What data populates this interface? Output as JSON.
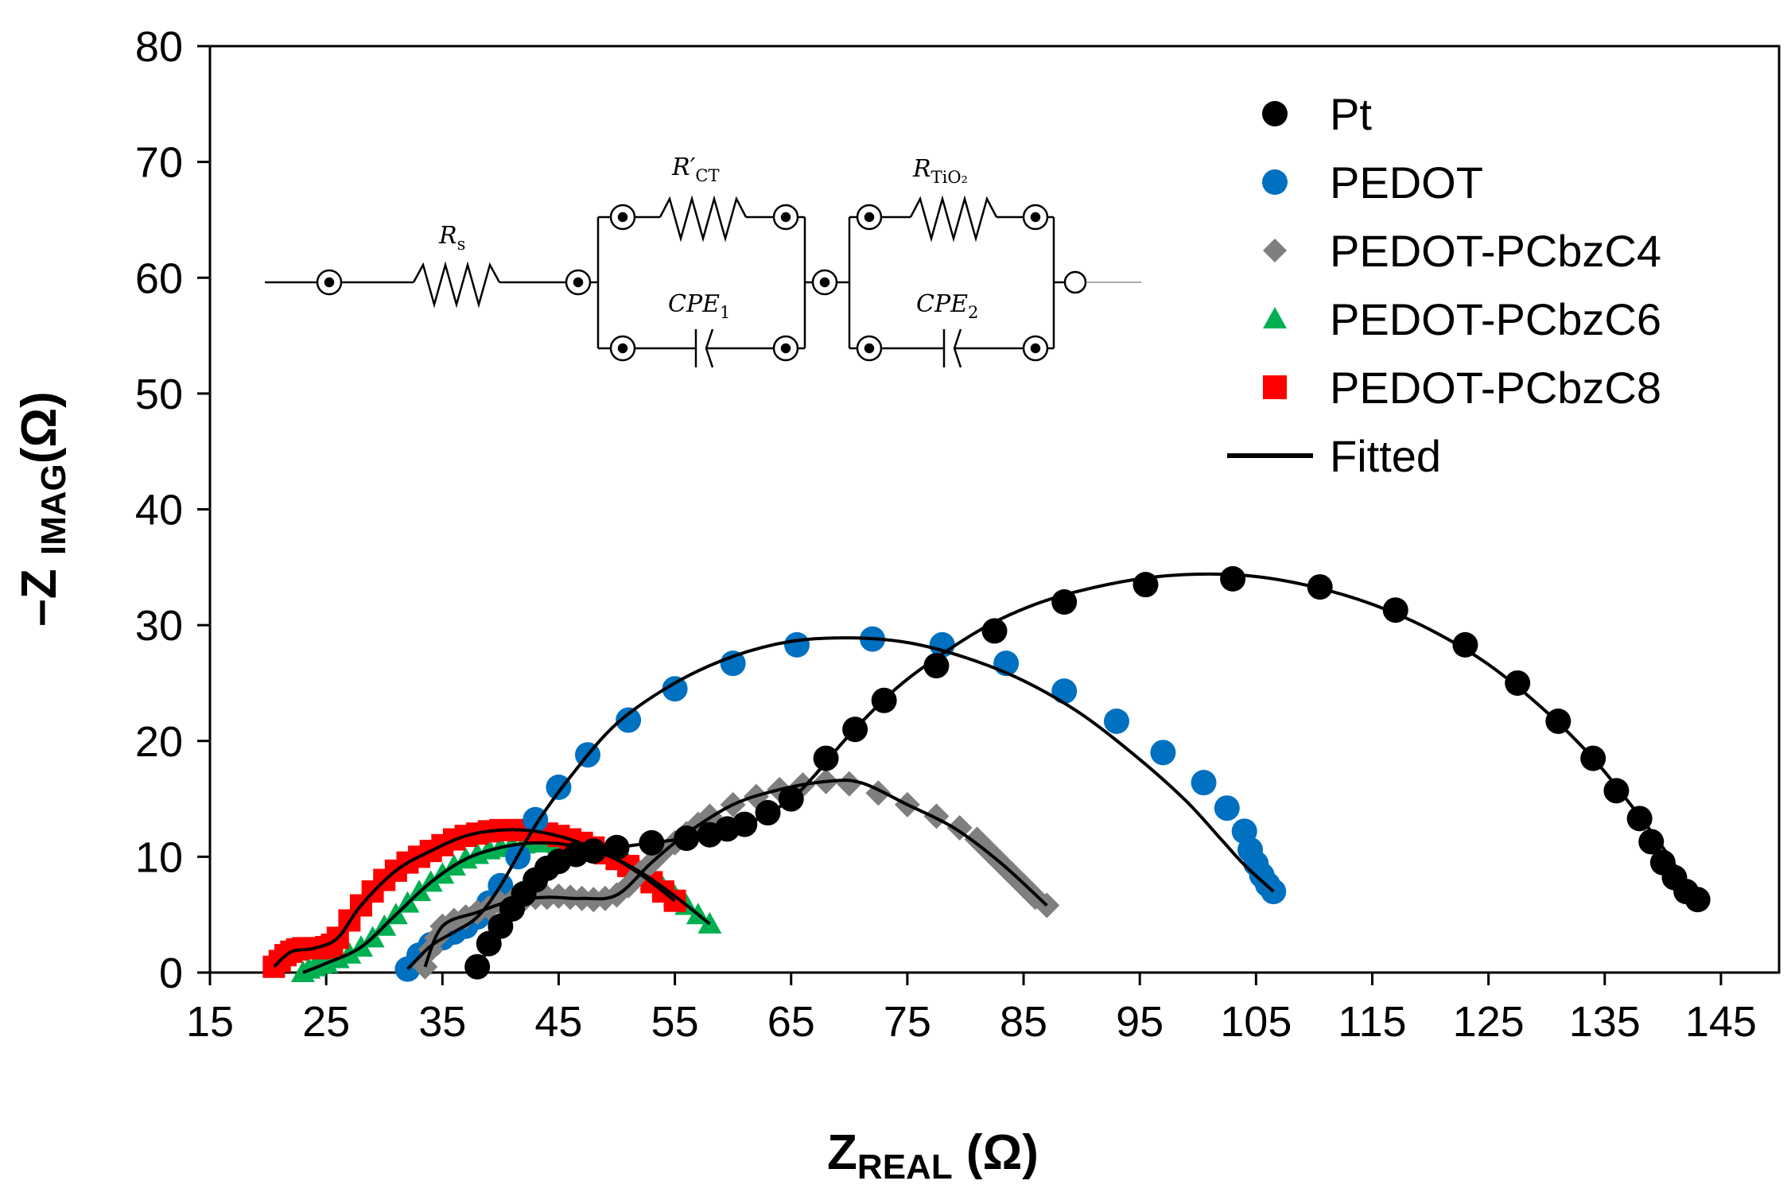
{
  "chart_data": {
    "type": "scatter",
    "title": "",
    "xlabel": {
      "main": "Z",
      "sub": "REAL",
      "unit": " (Ω)"
    },
    "ylabel": {
      "prefix": "–Z ",
      "sub": "IMAG",
      "unit": "(Ω)"
    },
    "xlim": [
      15,
      150
    ],
    "ylim": [
      0,
      80
    ],
    "xticks": [
      15,
      25,
      35,
      45,
      55,
      65,
      75,
      85,
      95,
      105,
      115,
      125,
      135,
      145
    ],
    "yticks": [
      0,
      10,
      20,
      30,
      40,
      50,
      60,
      70,
      80
    ],
    "grid": false,
    "legend_position": "top-right",
    "series": [
      {
        "name": "Pt",
        "marker": "circle",
        "color": "#000000",
        "x": [
          38,
          39,
          40,
          41,
          42,
          43,
          44,
          45,
          46.5,
          48,
          50,
          53,
          56,
          58,
          59.5,
          61,
          63,
          65,
          68,
          70.5,
          73,
          77.5,
          82.5,
          88.5,
          95.5,
          103,
          110.5,
          117,
          123,
          127.5,
          131,
          134,
          136,
          138,
          139,
          140,
          141,
          142,
          143
        ],
        "y": [
          0.5,
          2.5,
          4,
          5.5,
          6.8,
          8,
          9,
          9.6,
          10.2,
          10.5,
          10.8,
          11.2,
          11.6,
          11.9,
          12.4,
          12.8,
          13.8,
          15,
          18.5,
          21,
          23.5,
          26.5,
          29.5,
          32,
          33.5,
          34,
          33.3,
          31.3,
          28.3,
          25,
          21.7,
          18.5,
          15.7,
          13.3,
          11.3,
          9.5,
          8.2,
          7,
          6.3
        ]
      },
      {
        "name": "PEDOT",
        "marker": "circle",
        "color": "#0070C0",
        "x": [
          32,
          33,
          34,
          35,
          36,
          37,
          38,
          39,
          40,
          41.5,
          43,
          45,
          47.5,
          51,
          55,
          60,
          65.5,
          72,
          78,
          83.5,
          88.5,
          93,
          97,
          100.5,
          102.5,
          104,
          104.5,
          105,
          105.5,
          106,
          106.5
        ],
        "y": [
          0.3,
          1.5,
          2.4,
          3,
          3.5,
          4,
          4.8,
          6,
          7.5,
          10,
          13.2,
          16,
          18.8,
          21.8,
          24.5,
          26.7,
          28.3,
          28.8,
          28.3,
          26.7,
          24.3,
          21.7,
          19,
          16.4,
          14.2,
          12.2,
          10.6,
          9.4,
          8.4,
          7.6,
          7
        ]
      },
      {
        "name": "PEDOT-PCbzC4",
        "marker": "diamond",
        "color": "#7F7F7F",
        "x": [
          33.5,
          34,
          34.5,
          35,
          36,
          37,
          38,
          39,
          40,
          41,
          42,
          43,
          44,
          45,
          46,
          47,
          48,
          49,
          50,
          51,
          52,
          53,
          54,
          55,
          56,
          57,
          58,
          60,
          62,
          64,
          66,
          68,
          70,
          72.5,
          75,
          77.5,
          79.5,
          81,
          82,
          83,
          84,
          85,
          86,
          87
        ],
        "y": [
          0.5,
          2,
          3,
          4,
          4.5,
          4.8,
          5.2,
          5.6,
          6,
          6.2,
          6.3,
          6.5,
          6.5,
          6.6,
          6.5,
          6.4,
          6.3,
          6.4,
          6.7,
          7.5,
          8.6,
          9.5,
          10.5,
          11.2,
          12,
          12.8,
          13.5,
          14.5,
          15.2,
          15.8,
          16.2,
          16.5,
          16.3,
          15.5,
          14.5,
          13.5,
          12.5,
          11.5,
          10.5,
          9.5,
          8.5,
          7.5,
          6.5,
          5.8
        ]
      },
      {
        "name": "PEDOT-PCbzC6",
        "marker": "triangle",
        "color": "#00B050",
        "x": [
          23,
          23.5,
          24,
          24.5,
          25,
          26,
          27,
          28,
          29,
          30,
          31,
          32,
          33,
          34,
          35,
          36,
          37,
          38,
          39,
          40,
          41,
          42,
          43,
          44,
          45,
          46,
          47,
          48,
          49,
          50,
          51,
          52,
          53,
          54,
          55,
          56,
          57,
          58
        ],
        "y": [
          0,
          0.3,
          0.5,
          0.7,
          0.8,
          1.2,
          1.6,
          2.2,
          3,
          4,
          5,
          6,
          7,
          7.8,
          8.5,
          9.2,
          9.8,
          10.2,
          10.6,
          10.8,
          11,
          11.1,
          11.2,
          11.2,
          11.1,
          11,
          10.8,
          10.5,
          10.2,
          9.8,
          9.3,
          8.7,
          8,
          7.3,
          6.6,
          5.8,
          5,
          4.2
        ]
      },
      {
        "name": "PEDOT-PCbzC8",
        "marker": "square",
        "color": "#FF0000",
        "x": [
          20.5,
          21,
          21.5,
          22,
          22.5,
          23,
          23.5,
          24,
          24.5,
          25,
          25.5,
          26,
          27,
          28,
          29,
          30,
          31,
          32,
          33,
          34,
          35,
          36,
          37,
          38,
          39,
          40,
          41,
          42,
          43,
          44,
          45,
          46,
          47,
          48,
          49,
          50,
          51,
          52,
          53,
          54,
          55
        ],
        "y": [
          0.5,
          1,
          1.5,
          1.8,
          2,
          2.1,
          2.1,
          2.1,
          2.1,
          2.2,
          2.4,
          3,
          4.5,
          5.8,
          7,
          8,
          8.8,
          9.5,
          10,
          10.5,
          11,
          11.5,
          11.8,
          12,
          12.2,
          12.3,
          12.3,
          12.3,
          12.2,
          12,
          11.8,
          11.5,
          11.2,
          10.8,
          10.3,
          9.8,
          9.2,
          8.5,
          7.8,
          7,
          6.2
        ]
      },
      {
        "name": "Fitted",
        "marker": "line",
        "color": "#000000",
        "x": [],
        "y": []
      }
    ],
    "fitted_curves": [
      {
        "for": "Pt",
        "x": [
          38,
          40,
          42,
          44,
          46,
          48,
          50,
          53,
          56,
          59,
          62,
          65,
          67,
          70,
          74,
          78,
          82,
          86,
          90,
          95,
          100,
          105,
          110,
          115,
          120,
          125,
          130,
          134,
          137,
          140,
          142,
          143
        ],
        "y": [
          0.5,
          3.5,
          6.5,
          8.7,
          10,
          10.5,
          10.8,
          11.2,
          11.6,
          12.2,
          13.2,
          15,
          17,
          20.5,
          24.5,
          27.5,
          30,
          31.8,
          33,
          34,
          34.4,
          34.2,
          33.3,
          31.8,
          29.6,
          26.6,
          22.5,
          18.5,
          14.8,
          10.8,
          7.8,
          6.3
        ]
      },
      {
        "for": "PEDOT",
        "x": [
          32,
          34,
          36,
          38,
          40,
          43,
          46,
          50,
          55,
          60,
          65,
          70,
          75,
          80,
          85,
          90,
          95,
          99,
          102,
          104,
          106.5
        ],
        "y": [
          0.3,
          2.3,
          3.5,
          4.8,
          7.5,
          12.7,
          16.9,
          21.5,
          25,
          27.3,
          28.6,
          28.9,
          28.5,
          27.2,
          25.2,
          22.3,
          18.4,
          14.8,
          11.5,
          9.3,
          7
        ]
      },
      {
        "for": "PEDOT-PCbzC4",
        "x": [
          33.5,
          35,
          38,
          41,
          44,
          47,
          50,
          53,
          56,
          60,
          64,
          68,
          71,
          75,
          79,
          83,
          87
        ],
        "y": [
          0.5,
          4,
          5.2,
          6.2,
          6.5,
          6.4,
          6.7,
          9.5,
          12,
          14.5,
          15.8,
          16.5,
          16.4,
          14.5,
          12.5,
          9.5,
          5.8
        ]
      },
      {
        "for": "PEDOT-PCbzC6",
        "x": [
          23,
          25,
          28,
          31,
          34,
          37,
          40,
          43,
          46,
          49,
          52,
          55,
          58
        ],
        "y": [
          0,
          0.8,
          2.2,
          5,
          7.8,
          9.8,
          10.8,
          11.2,
          11,
          10.2,
          8.7,
          6.6,
          4.2
        ]
      },
      {
        "for": "PEDOT-PCbzC8",
        "x": [
          20.5,
          22,
          24,
          26,
          28,
          31,
          34,
          37,
          40,
          43,
          46,
          49,
          52,
          55
        ],
        "y": [
          0.5,
          1.8,
          2.1,
          3,
          5.8,
          8.8,
          10.5,
          11.8,
          12.3,
          12.2,
          11.5,
          10.3,
          8.5,
          6.2
        ]
      }
    ],
    "inset_circuit": {
      "labels": {
        "rs": {
          "main": "R",
          "sub": "s"
        },
        "rct": {
          "main": "R′",
          "sub": "CT"
        },
        "rtio2": {
          "main": "R",
          "sub": "TiO₂"
        },
        "cpe1": {
          "main": "CPE",
          "sub": "1"
        },
        "cpe2": {
          "main": "CPE",
          "sub": "2"
        }
      }
    }
  }
}
